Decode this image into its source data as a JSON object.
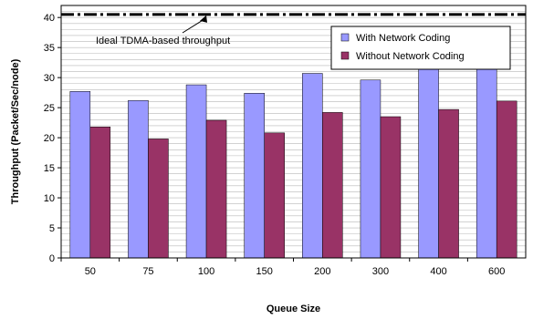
{
  "chart_data": {
    "type": "bar",
    "categories": [
      "50",
      "75",
      "100",
      "150",
      "200",
      "300",
      "400",
      "600"
    ],
    "series": [
      {
        "name": "With Network Coding",
        "color": "#9999ff",
        "values": [
          27.7,
          26.2,
          28.8,
          27.4,
          30.7,
          29.6,
          32.8,
          32.0
        ]
      },
      {
        "name": "Without Network Coding",
        "color": "#993366",
        "values": [
          21.8,
          19.8,
          22.9,
          20.8,
          24.2,
          23.5,
          24.7,
          26.1
        ]
      }
    ],
    "xlabel": "Queue Size",
    "ylabel": "Throughput (Packet/Sec/node)",
    "ylim": [
      0,
      42
    ],
    "yticks": [
      0,
      5,
      10,
      15,
      20,
      25,
      30,
      35,
      40
    ],
    "reference_line": {
      "value": 40.5,
      "label": "Ideal TDMA-based throughput",
      "style": "dash-dot"
    },
    "grid": true,
    "legend": "top-right"
  }
}
